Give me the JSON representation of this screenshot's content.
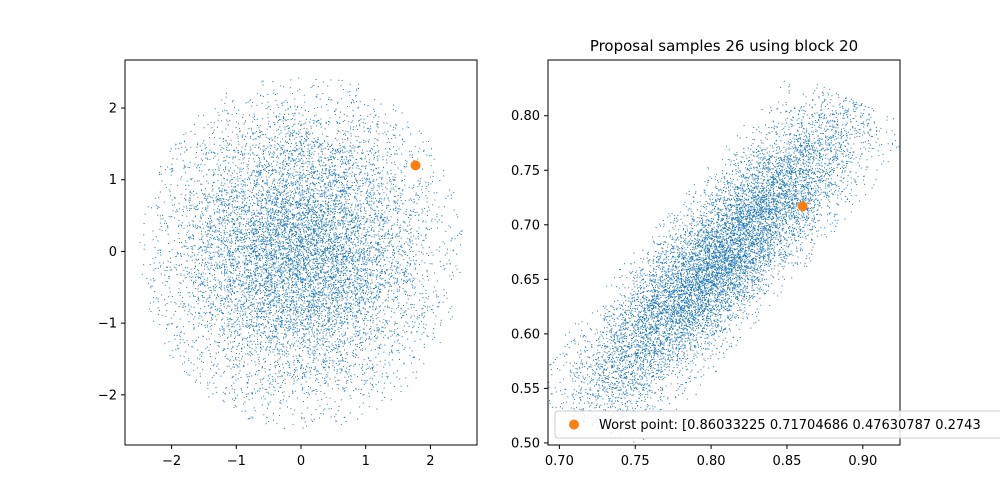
{
  "chart_data": [
    {
      "type": "scatter",
      "title": "",
      "xlabel": "",
      "ylabel": "",
      "xlim": [
        -2.72,
        2.72
      ],
      "ylim": [
        -2.7,
        2.67
      ],
      "xticks": [
        -2,
        -1,
        0,
        1,
        2
      ],
      "yticks": [
        -2,
        -1,
        0,
        1,
        2
      ],
      "xtick_labels": [
        "−2",
        "−1",
        "0",
        "1",
        "2"
      ],
      "ytick_labels": [
        "−2",
        "−1",
        "0",
        "1",
        "2"
      ],
      "grid": false,
      "series": [
        {
          "kind": "points",
          "color": "#1f77b4",
          "approx_count": 10000,
          "distribution": {
            "shape": "disk",
            "center": [
              0,
              0
            ],
            "radius": 2.5,
            "std": 1.0
          }
        },
        {
          "kind": "marker",
          "color": "#ff7f0e",
          "points": [
            [
              1.77,
              1.2
            ]
          ]
        }
      ]
    },
    {
      "type": "scatter",
      "title": "Proposal samples 26 using block 20",
      "xlabel": "",
      "ylabel": "",
      "xlim": [
        0.6925,
        0.9245
      ],
      "ylim": [
        0.4981,
        0.8511
      ],
      "xticks": [
        0.7,
        0.75,
        0.8,
        0.85,
        0.9
      ],
      "yticks": [
        0.5,
        0.55,
        0.6,
        0.65,
        0.7,
        0.75,
        0.8
      ],
      "xtick_labels": [
        "0.70",
        "0.75",
        "0.80",
        "0.85",
        "0.90"
      ],
      "ytick_labels": [
        "0.50",
        "0.55",
        "0.60",
        "0.65",
        "0.70",
        "0.75",
        "0.80"
      ],
      "grid": false,
      "legend_position": "bottom-right",
      "series": [
        {
          "kind": "points",
          "color": "#1f77b4",
          "approx_count": 10000,
          "distribution": {
            "shape": "diagonal-ellipse",
            "lower_end": [
              0.715,
              0.52
            ],
            "upper_end": [
              0.895,
              0.815
            ],
            "width": 0.04
          }
        },
        {
          "kind": "marker",
          "name": "Worst point: [0.86033225 0.71704686 0.47630787 0.2743",
          "color": "#ff7f0e",
          "points": [
            [
              0.86033225,
              0.71704686
            ]
          ]
        }
      ]
    }
  ]
}
